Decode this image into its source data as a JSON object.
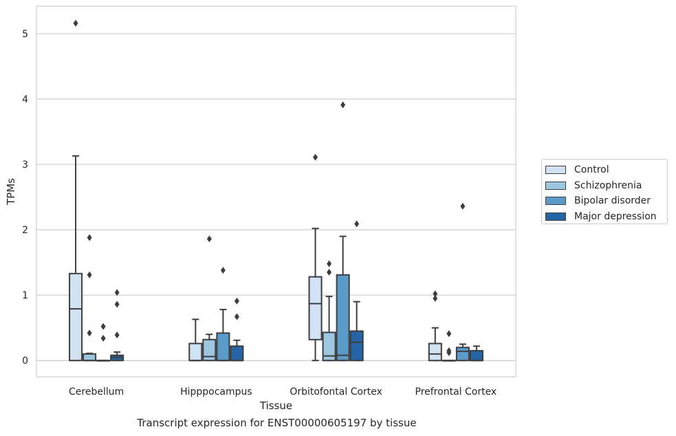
{
  "caption": "Transcript expression for ENST00000605197 by tissue",
  "chart_data": {
    "type": "box",
    "xlabel": "Tissue",
    "ylabel": "TPMs",
    "ylim": [
      -0.25,
      5.42
    ],
    "yticks": [
      0,
      1,
      2,
      3,
      4,
      5
    ],
    "grid": true,
    "legend_position": "right",
    "categories": [
      "Cerebellum",
      "Hipppocampus",
      "Orbitofontal Cortex",
      "Prefrontal Cortex"
    ],
    "series": [
      {
        "name": "Control",
        "color": "#d1e2f2",
        "boxes": [
          {
            "q1": 0.0,
            "median": 0.79,
            "q3": 1.33,
            "whisker_low": 0.0,
            "whisker_high": 3.13,
            "outliers": [
              5.16
            ]
          },
          {
            "q1": 0.0,
            "median": 0.0,
            "q3": 0.26,
            "whisker_low": 0.0,
            "whisker_high": 0.63,
            "outliers": []
          },
          {
            "q1": 0.32,
            "median": 0.87,
            "q3": 1.28,
            "whisker_low": 0.0,
            "whisker_high": 2.02,
            "outliers": [
              3.11
            ]
          },
          {
            "q1": 0.0,
            "median": 0.1,
            "q3": 0.26,
            "whisker_low": 0.0,
            "whisker_high": 0.5,
            "outliers": [
              0.95,
              1.02
            ]
          }
        ]
      },
      {
        "name": "Schizophrenia",
        "color": "#9dc6e0",
        "boxes": [
          {
            "q1": 0.0,
            "median": 0.0,
            "q3": 0.1,
            "whisker_low": 0.0,
            "whisker_high": 0.11,
            "outliers": [
              0.42,
              1.31,
              1.88
            ]
          },
          {
            "q1": 0.0,
            "median": 0.06,
            "q3": 0.32,
            "whisker_low": 0.0,
            "whisker_high": 0.4,
            "outliers": [
              1.86
            ]
          },
          {
            "q1": 0.0,
            "median": 0.07,
            "q3": 0.43,
            "whisker_low": 0.0,
            "whisker_high": 0.98,
            "outliers": [
              1.35,
              1.48
            ]
          },
          {
            "q1": 0.0,
            "median": 0.0,
            "q3": 0.0,
            "whisker_low": 0.0,
            "whisker_high": 0.0,
            "outliers": [
              0.12,
              0.15,
              0.41
            ]
          }
        ]
      },
      {
        "name": "Bipolar disorder",
        "color": "#5a9bc9",
        "boxes": [
          {
            "q1": 0.0,
            "median": 0.0,
            "q3": 0.0,
            "whisker_low": 0.0,
            "whisker_high": 0.0,
            "outliers": [
              0.34,
              0.52
            ]
          },
          {
            "q1": 0.0,
            "median": 0.0,
            "q3": 0.42,
            "whisker_low": 0.0,
            "whisker_high": 0.78,
            "outliers": [
              1.38
            ]
          },
          {
            "q1": 0.0,
            "median": 0.08,
            "q3": 1.31,
            "whisker_low": 0.0,
            "whisker_high": 1.9,
            "outliers": [
              3.91
            ]
          },
          {
            "q1": 0.0,
            "median": 0.14,
            "q3": 0.2,
            "whisker_low": 0.0,
            "whisker_high": 0.25,
            "outliers": [
              2.36
            ]
          }
        ]
      },
      {
        "name": "Major depression",
        "color": "#2565a6",
        "boxes": [
          {
            "q1": 0.0,
            "median": 0.05,
            "q3": 0.08,
            "whisker_low": 0.0,
            "whisker_high": 0.13,
            "outliers": [
              0.39,
              0.86,
              1.04
            ]
          },
          {
            "q1": 0.0,
            "median": 0.0,
            "q3": 0.22,
            "whisker_low": 0.0,
            "whisker_high": 0.31,
            "outliers": [
              0.67,
              0.91
            ]
          },
          {
            "q1": 0.0,
            "median": 0.28,
            "q3": 0.45,
            "whisker_low": 0.0,
            "whisker_high": 0.9,
            "outliers": [
              2.09
            ]
          },
          {
            "q1": 0.0,
            "median": 0.0,
            "q3": 0.15,
            "whisker_low": 0.0,
            "whisker_high": 0.22,
            "outliers": []
          }
        ]
      }
    ]
  }
}
